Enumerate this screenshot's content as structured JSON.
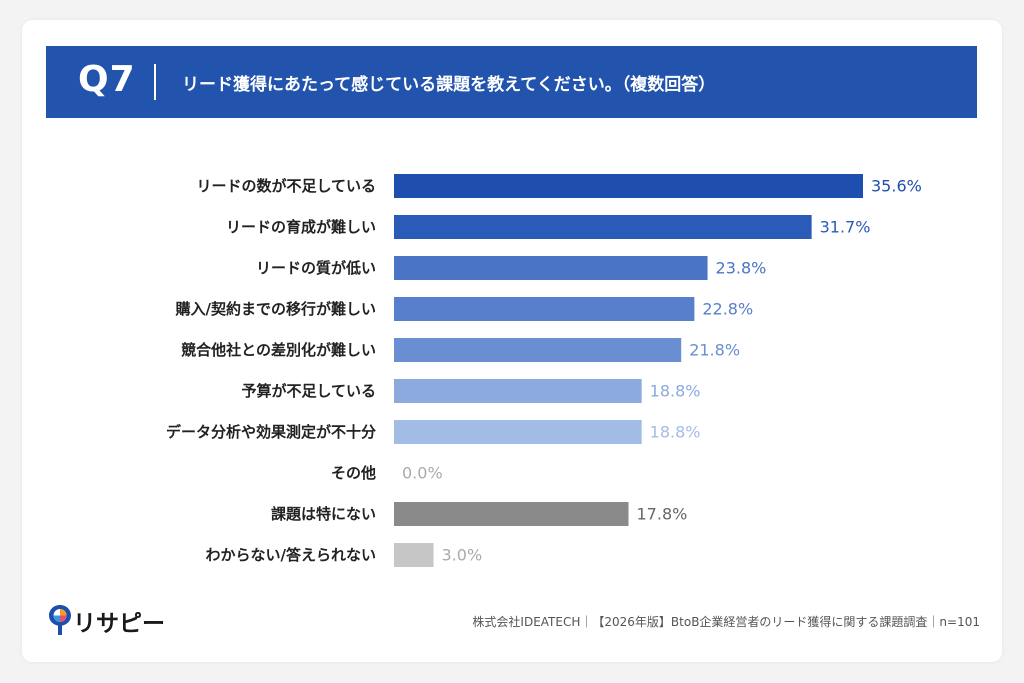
{
  "header": {
    "question_number": "Q7",
    "question_text": "リード獲得にあたって感じている課題を教えてください。（複数回答）"
  },
  "chart_data": {
    "type": "bar",
    "orientation": "horizontal",
    "categories": [
      "リードの数が不足している",
      "リードの育成が難しい",
      "リードの質が低い",
      "購入/契約までの移行が難しい",
      "競合他社との差別化が難しい",
      "予算が不足している",
      "データ分析や効果測定が不十分",
      "その他",
      "課題は特にない",
      "わからない/答えられない"
    ],
    "values": [
      35.6,
      31.7,
      23.8,
      22.8,
      21.8,
      18.8,
      18.8,
      0.0,
      17.8,
      3.0
    ],
    "value_labels": [
      "35.6%",
      "31.7%",
      "23.8%",
      "22.8%",
      "21.8%",
      "18.8%",
      "18.8%",
      "0.0%",
      "17.8%",
      "3.0%"
    ],
    "bar_colors": [
      "#1f4fae",
      "#2a5bb8",
      "#4a74c6",
      "#587fcb",
      "#6a8ed2",
      "#8daade",
      "#a3bce5",
      "#cccccc",
      "#8a8a8a",
      "#c6c6c6"
    ],
    "label_colors": [
      "#1f4fae",
      "#2a5bb8",
      "#4a74c6",
      "#587fcb",
      "#6a8ed2",
      "#8daade",
      "#a3bce5",
      "#aaaaaa",
      "#666666",
      "#aaaaaa"
    ],
    "xlim": [
      0,
      35.6
    ],
    "grid": false,
    "legend": "none"
  },
  "footer": {
    "logo_text": "リサピー",
    "source": "株式会社IDEATECH｜【2026年版】BtoB企業経営者のリード獲得に関する課題調査｜n=101"
  },
  "colors": {
    "banner": "#2253ad",
    "background": "#ffffff"
  }
}
